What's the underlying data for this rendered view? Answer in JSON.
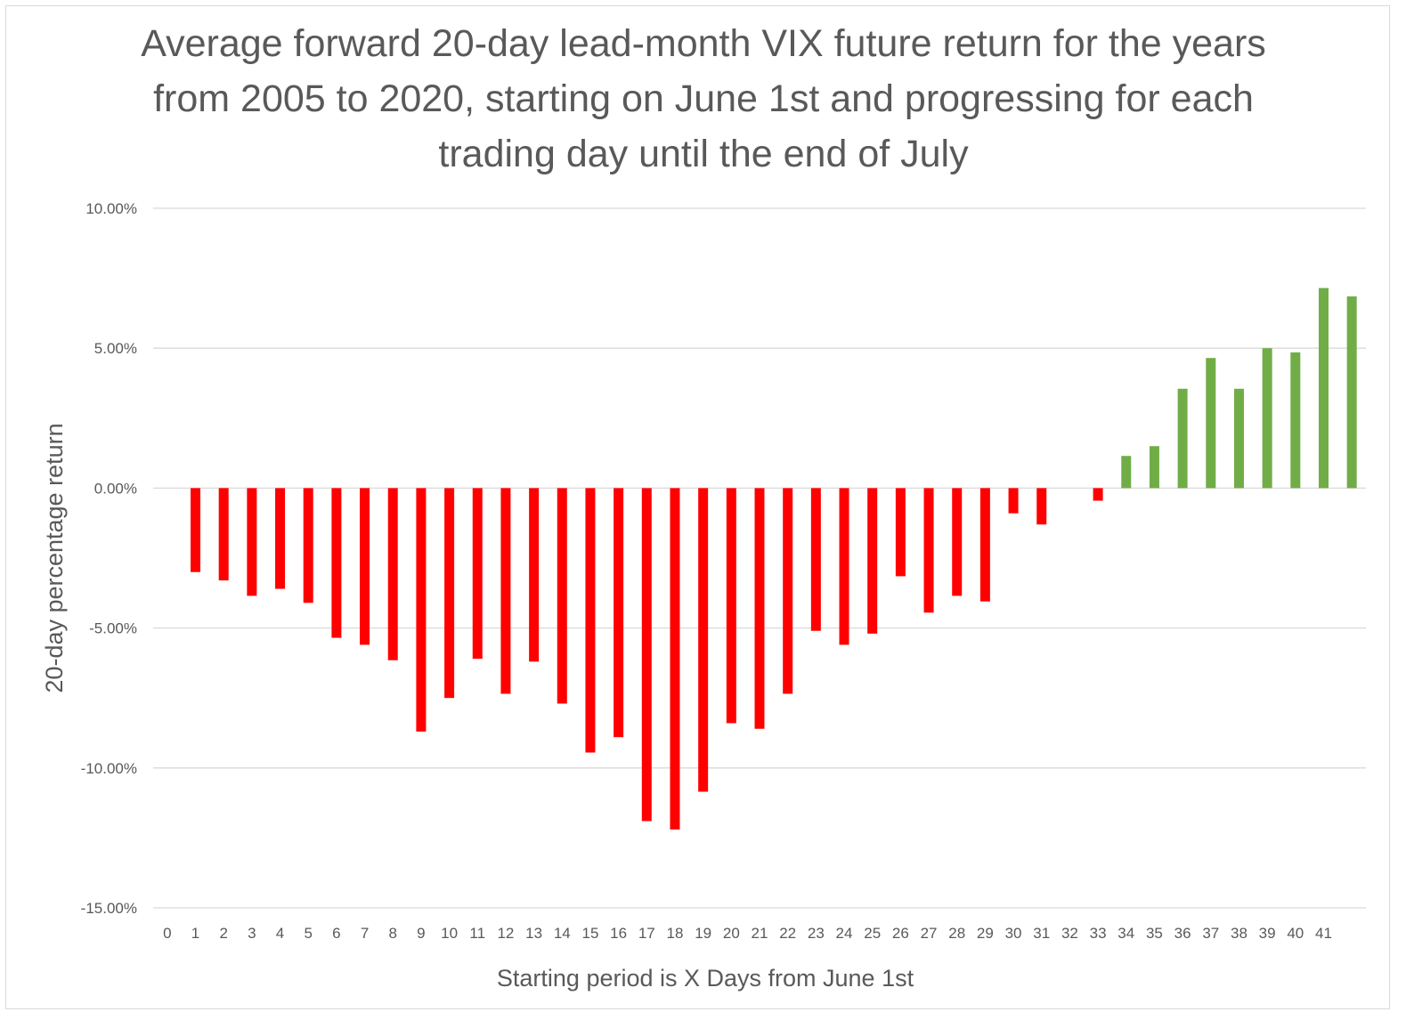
{
  "chart_data": {
    "type": "bar",
    "title": "Average forward 20-day lead-month VIX future return for the years from 2005 to 2020, starting on June 1st and progressing for each trading day until the end of July",
    "xlabel": "Starting period is X Days from June 1st",
    "ylabel": "20-day percentage return",
    "ylim": [
      -15,
      10
    ],
    "yticks": [
      10,
      5,
      0,
      -5,
      -10,
      -15
    ],
    "ytick_labels": [
      "10.00%",
      "5.00%",
      "0.00%",
      "-5.00%",
      "-10.00%",
      "-15.00%"
    ],
    "categories": [
      "0",
      "1",
      "2",
      "3",
      "4",
      "5",
      "6",
      "7",
      "8",
      "9",
      "10",
      "11",
      "12",
      "13",
      "14",
      "15",
      "16",
      "17",
      "18",
      "19",
      "20",
      "21",
      "22",
      "23",
      "24",
      "25",
      "26",
      "27",
      "28",
      "29",
      "30",
      "31",
      "32",
      "33",
      "34",
      "35",
      "36",
      "37",
      "38",
      "39",
      "40",
      "41",
      ""
    ],
    "values": [
      null,
      -3.0,
      -3.3,
      -3.85,
      -3.6,
      -4.1,
      -5.35,
      -5.6,
      -6.15,
      -8.7,
      -7.5,
      -6.1,
      -7.35,
      -6.2,
      -7.7,
      -9.45,
      -8.9,
      -11.9,
      -12.2,
      -10.85,
      -8.4,
      -8.6,
      -7.35,
      -5.1,
      -5.6,
      -5.2,
      -3.15,
      -4.45,
      -3.85,
      -4.05,
      -0.9,
      -1.3,
      null,
      -0.45,
      1.15,
      1.5,
      3.55,
      4.65,
      3.55,
      5.0,
      4.85,
      7.15,
      6.85
    ],
    "colors": {
      "negative": "#ff0000",
      "positive": "#70ad47"
    },
    "grid": true,
    "legend": "none"
  }
}
